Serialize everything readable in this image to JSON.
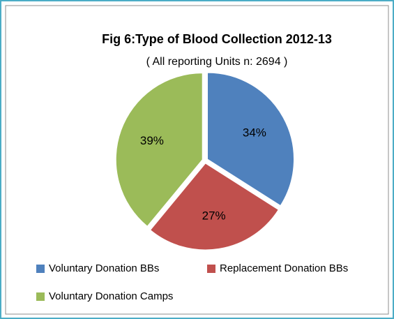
{
  "chart_data": {
    "type": "pie",
    "title": "Fig 6:Type of Blood Collection 2012-13",
    "subtitle": "( All reporting Units n: 2694 )",
    "categories": [
      "Voluntary Donation BBs",
      "Replacement Donation BBs",
      "Voluntary Donation Camps"
    ],
    "values": [
      34,
      27,
      39
    ],
    "value_labels": [
      "34%",
      "27%",
      "39%"
    ],
    "colors": [
      "#4f81bd",
      "#c0504d",
      "#9bbb59"
    ],
    "legend": "bottom"
  }
}
